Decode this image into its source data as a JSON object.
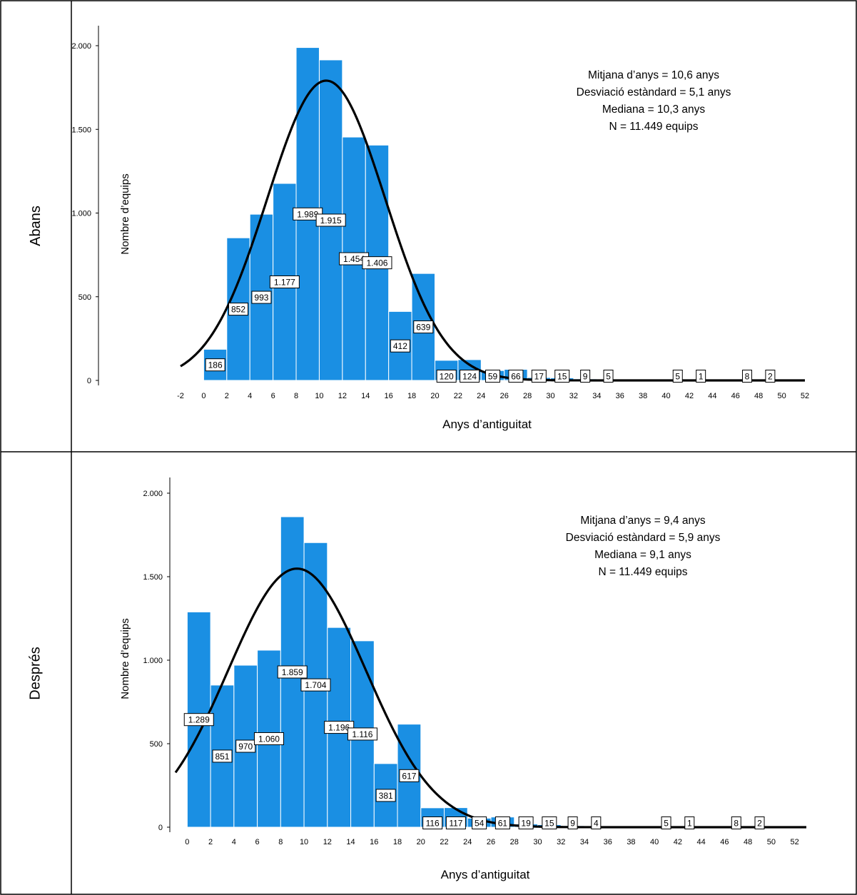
{
  "rows": [
    {
      "row_label": "Abans",
      "stats": [
        "Mitjana d’anys = 10,6 anys",
        "Desviació estàndard = 5,1 anys",
        "Mediana = 10,3 anys",
        "N = 11.449 equips"
      ]
    },
    {
      "row_label": "Després",
      "stats": [
        "Mitjana d’anys = 9,4 anys",
        "Desviació estàndard = 5,9 anys",
        "Mediana = 9,1 anys",
        "N = 11.449 equips"
      ]
    }
  ],
  "colors": {
    "bar": "#1a8fe3",
    "curve": "#000000"
  },
  "chart_data": [
    {
      "type": "bar",
      "title": "",
      "xlabel": "Anys d’antiguitat",
      "ylabel": "Nombre d’equips",
      "xlim": [
        -2,
        52
      ],
      "ylim": [
        0,
        2000
      ],
      "xticks": [
        -2,
        0,
        2,
        4,
        6,
        8,
        10,
        12,
        14,
        16,
        18,
        20,
        22,
        24,
        26,
        28,
        30,
        32,
        34,
        36,
        38,
        40,
        42,
        44,
        46,
        48,
        50,
        52
      ],
      "yticks": [
        0,
        500,
        1000,
        1500,
        2000
      ],
      "ytick_labels": [
        "0",
        "500",
        "1.000",
        "1.500",
        "2.000"
      ],
      "bin_width": 2,
      "bins": [
        {
          "x0": 0,
          "value": 186,
          "label": "186"
        },
        {
          "x0": 2,
          "value": 852,
          "label": "852"
        },
        {
          "x0": 4,
          "value": 993,
          "label": "993"
        },
        {
          "x0": 6,
          "value": 1177,
          "label": "1.177"
        },
        {
          "x0": 8,
          "value": 1989,
          "label": "1.989"
        },
        {
          "x0": 10,
          "value": 1915,
          "label": "1.915"
        },
        {
          "x0": 12,
          "value": 1454,
          "label": "1.454"
        },
        {
          "x0": 14,
          "value": 1406,
          "label": "1.406"
        },
        {
          "x0": 16,
          "value": 412,
          "label": "412"
        },
        {
          "x0": 18,
          "value": 639,
          "label": "639"
        },
        {
          "x0": 20,
          "value": 120,
          "label": "120"
        },
        {
          "x0": 22,
          "value": 124,
          "label": "124"
        },
        {
          "x0": 24,
          "value": 59,
          "label": "59"
        },
        {
          "x0": 26,
          "value": 66,
          "label": "66"
        },
        {
          "x0": 28,
          "value": 17,
          "label": "17"
        },
        {
          "x0": 30,
          "value": 15,
          "label": "15"
        },
        {
          "x0": 32,
          "value": 9,
          "label": "9"
        },
        {
          "x0": 34,
          "value": 5,
          "label": "5"
        },
        {
          "x0": 40,
          "value": 5,
          "label": "5"
        },
        {
          "x0": 42,
          "value": 1,
          "label": "1"
        },
        {
          "x0": 46,
          "value": 8,
          "label": "8"
        },
        {
          "x0": 48,
          "value": 2,
          "label": "2"
        }
      ],
      "normal_curve": {
        "mean": 10.6,
        "sd": 5.1,
        "n": 11449
      }
    },
    {
      "type": "bar",
      "title": "",
      "xlabel": "Anys d’antiguitat",
      "ylabel": "Nombre d’equips",
      "xlim": [
        -1,
        53
      ],
      "ylim": [
        0,
        2000
      ],
      "xticks": [
        0,
        2,
        4,
        6,
        8,
        10,
        12,
        14,
        16,
        18,
        20,
        22,
        24,
        26,
        28,
        30,
        32,
        34,
        36,
        38,
        40,
        42,
        44,
        46,
        48,
        50,
        52
      ],
      "yticks": [
        0,
        500,
        1000,
        1500,
        2000
      ],
      "ytick_labels": [
        "0",
        "500",
        "1.000",
        "1.500",
        "2.000"
      ],
      "bin_width": 2,
      "bins": [
        {
          "x0": 0,
          "value": 1289,
          "label": "1.289"
        },
        {
          "x0": 2,
          "value": 851,
          "label": "851"
        },
        {
          "x0": 4,
          "value": 970,
          "label": "970"
        },
        {
          "x0": 6,
          "value": 1060,
          "label": "1.060"
        },
        {
          "x0": 8,
          "value": 1859,
          "label": "1.859"
        },
        {
          "x0": 10,
          "value": 1704,
          "label": "1.704"
        },
        {
          "x0": 12,
          "value": 1196,
          "label": "1.196"
        },
        {
          "x0": 14,
          "value": 1116,
          "label": "1.116"
        },
        {
          "x0": 16,
          "value": 381,
          "label": "381"
        },
        {
          "x0": 18,
          "value": 617,
          "label": "617"
        },
        {
          "x0": 20,
          "value": 116,
          "label": "116"
        },
        {
          "x0": 22,
          "value": 117,
          "label": "117"
        },
        {
          "x0": 24,
          "value": 54,
          "label": "54"
        },
        {
          "x0": 26,
          "value": 61,
          "label": "61"
        },
        {
          "x0": 28,
          "value": 19,
          "label": "19"
        },
        {
          "x0": 30,
          "value": 15,
          "label": "15"
        },
        {
          "x0": 32,
          "value": 9,
          "label": "9"
        },
        {
          "x0": 34,
          "value": 4,
          "label": "4"
        },
        {
          "x0": 40,
          "value": 5,
          "label": "5"
        },
        {
          "x0": 42,
          "value": 1,
          "label": "1"
        },
        {
          "x0": 46,
          "value": 8,
          "label": "8"
        },
        {
          "x0": 48,
          "value": 2,
          "label": "2"
        }
      ],
      "normal_curve": {
        "mean": 9.4,
        "sd": 5.9,
        "n": 11449
      }
    }
  ]
}
